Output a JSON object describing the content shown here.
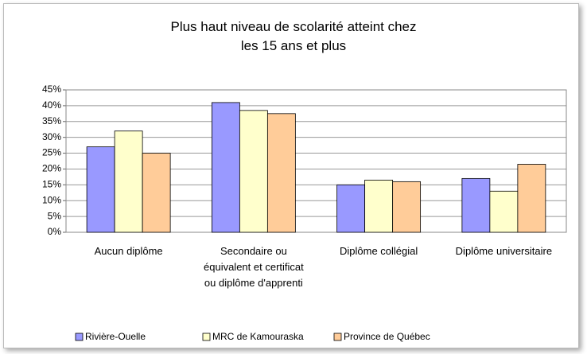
{
  "chart_data": {
    "type": "bar",
    "title": "Plus haut niveau de scolarité atteint chez les 15 ans et plus",
    "categories": [
      "Aucun diplôme",
      "Secondaire ou équivalent et certificat ou diplôme d'apprenti",
      "Diplôme collégial",
      "Diplôme universitaire"
    ],
    "series": [
      {
        "name": "Rivière-Ouelle",
        "color": "#9999ff",
        "values": [
          27,
          41,
          15,
          17
        ]
      },
      {
        "name": "MRC de Kamouraska",
        "color": "#ffffcc",
        "values": [
          32,
          38.5,
          16.5,
          13
        ]
      },
      {
        "name": "Province de Québec",
        "color": "#ffcc99",
        "values": [
          25,
          37.5,
          16,
          21.5
        ]
      }
    ],
    "ylim": [
      0,
      45
    ],
    "yticks": [
      {
        "value": 0,
        "label": "0%"
      },
      {
        "value": 5,
        "label": "5%"
      },
      {
        "value": 10,
        "label": "10%"
      },
      {
        "value": 15,
        "label": "15%"
      },
      {
        "value": 20,
        "label": "20%"
      },
      {
        "value": 25,
        "label": "25%"
      },
      {
        "value": 30,
        "label": "30%"
      },
      {
        "value": 35,
        "label": "35%"
      },
      {
        "value": 40,
        "label": "40%"
      },
      {
        "value": 45,
        "label": "45%"
      }
    ],
    "grid": true,
    "legend": "bottom"
  }
}
